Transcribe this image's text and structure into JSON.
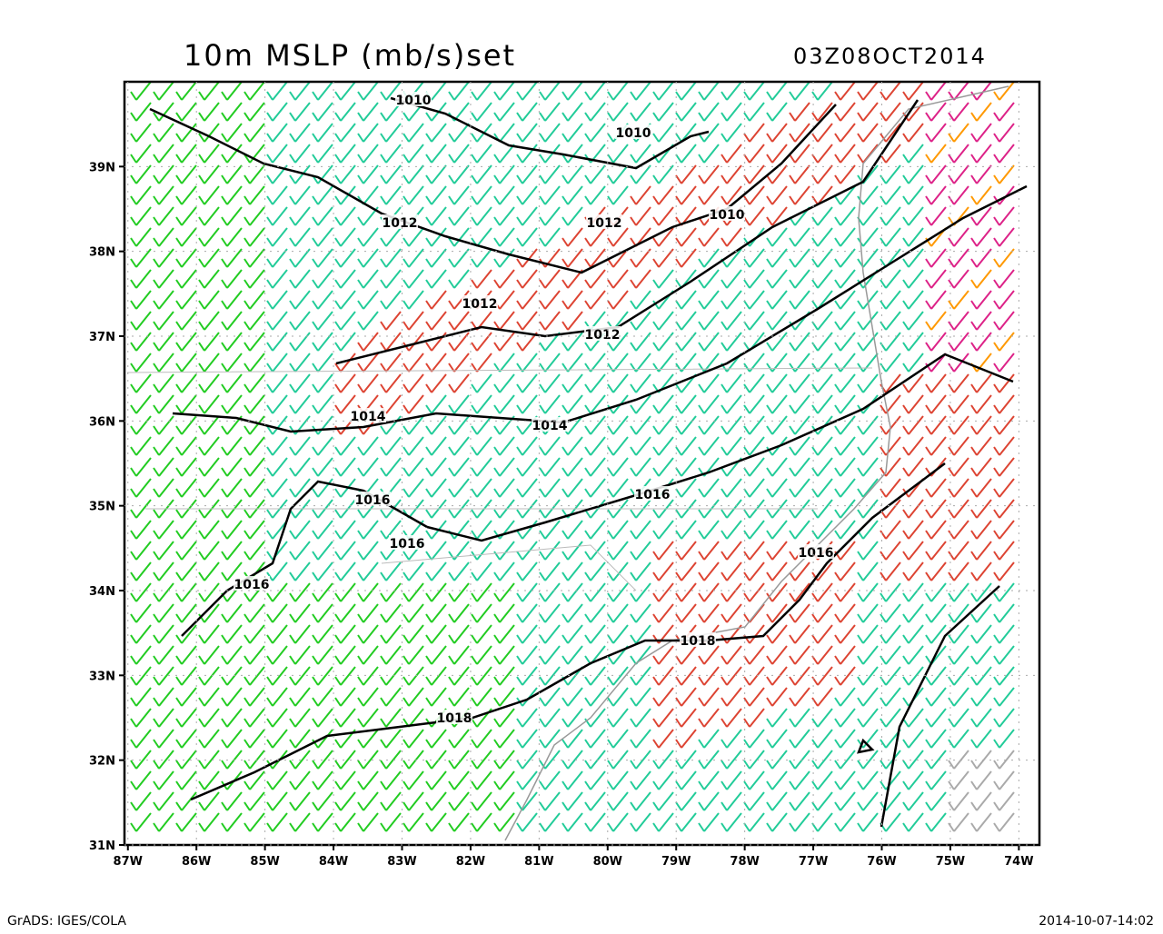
{
  "map": {
    "title": "10m MSLP (mb/s)set",
    "timestamp": "03Z08OCT2014",
    "footer_left": "GrADS: IGES/COLA",
    "footer_right": "2014-10-07-14:02",
    "xlim": [
      -87.05,
      -73.7
    ],
    "ylim": [
      31,
      40
    ],
    "xticks": [
      {
        "value": -87,
        "label": "87W"
      },
      {
        "value": -86,
        "label": "86W"
      },
      {
        "value": -85,
        "label": "85W"
      },
      {
        "value": -84,
        "label": "84W"
      },
      {
        "value": -83,
        "label": "83W"
      },
      {
        "value": -82,
        "label": "82W"
      },
      {
        "value": -81,
        "label": "81W"
      },
      {
        "value": -80,
        "label": "80W"
      },
      {
        "value": -79,
        "label": "79W"
      },
      {
        "value": -78,
        "label": "78W"
      },
      {
        "value": -77,
        "label": "77W"
      },
      {
        "value": -76,
        "label": "76W"
      },
      {
        "value": -75,
        "label": "75W"
      },
      {
        "value": -74,
        "label": "74W"
      }
    ],
    "yticks": [
      {
        "value": 31,
        "label": "31N"
      },
      {
        "value": 32,
        "label": "32N"
      },
      {
        "value": 33,
        "label": "33N"
      },
      {
        "value": 34,
        "label": "34N"
      },
      {
        "value": 35,
        "label": "35N"
      },
      {
        "value": 36,
        "label": "36N"
      },
      {
        "value": 37,
        "label": "37N"
      },
      {
        "value": 38,
        "label": "38N"
      },
      {
        "value": 39,
        "label": "39N"
      }
    ],
    "contour_labels": [
      "1010",
      "1010",
      "1010",
      "1012",
      "1012",
      "1012",
      "1012",
      "1014",
      "1014",
      "1016",
      "1016",
      "1016",
      "1016",
      "1016",
      "1018",
      "1018"
    ]
  }
}
